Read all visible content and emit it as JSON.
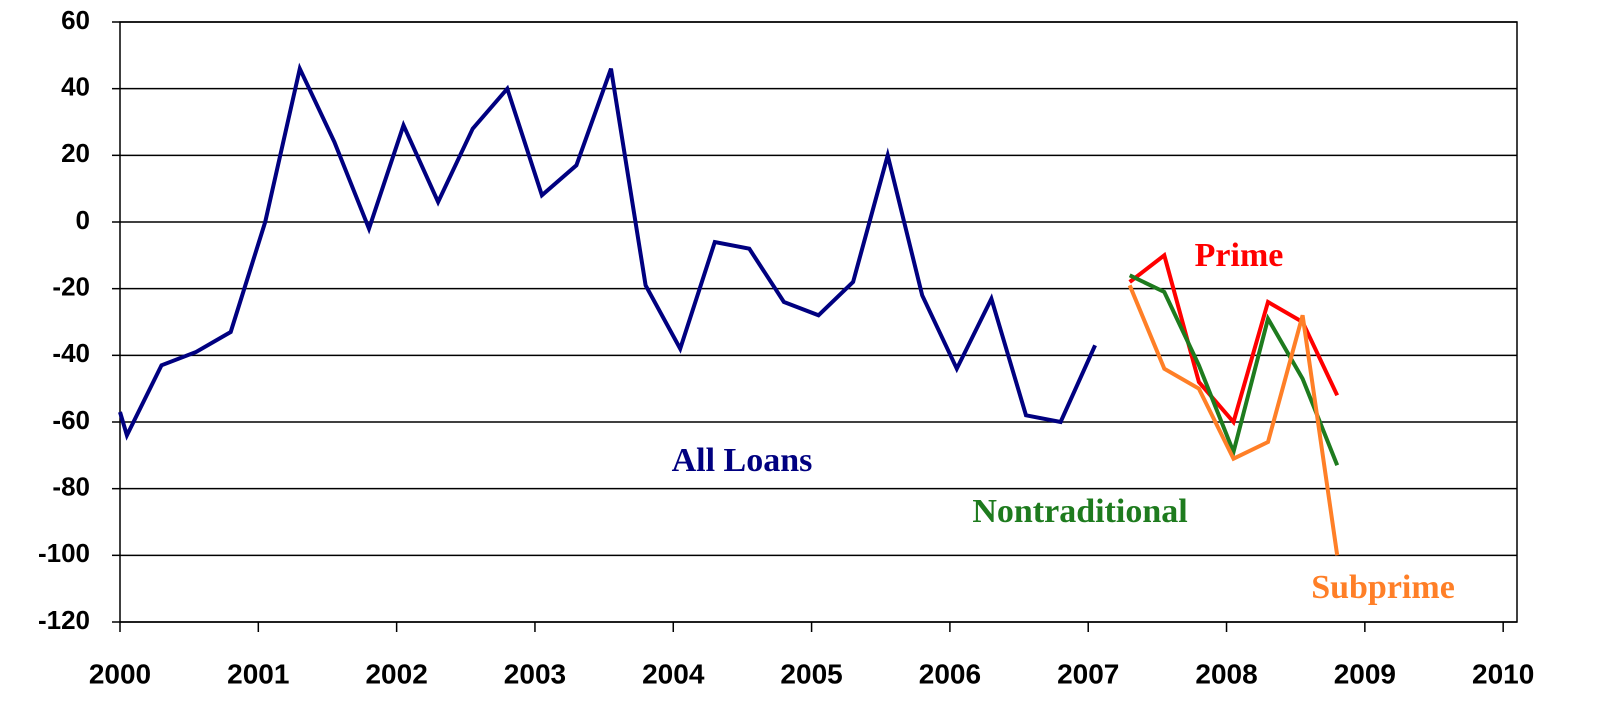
{
  "chart_data": {
    "type": "line",
    "series": [
      {
        "name": "All Loans",
        "color": "#000080",
        "x": [
          2000,
          2000.05,
          2000.3,
          2000.55,
          2000.8,
          2001.05,
          2001.3,
          2001.55,
          2001.8,
          2002.05,
          2002.3,
          2002.55,
          2002.8,
          2003.05,
          2003.3,
          2003.55,
          2003.8,
          2004.05,
          2004.3,
          2004.55,
          2004.8,
          2005.05,
          2005.3,
          2005.55,
          2005.8,
          2006.05,
          2006.3,
          2006.55,
          2006.8,
          2007.05
        ],
        "values": [
          -57,
          -64,
          -43,
          -39,
          -33,
          0,
          46,
          24,
          -2,
          29,
          6,
          28,
          40,
          8,
          17,
          46,
          -19,
          -38,
          -6,
          -8,
          -24,
          -28,
          -18,
          20,
          -22,
          -44,
          -23,
          -58,
          -60,
          -37
        ]
      },
      {
        "name": "Prime",
        "color": "#ff0000",
        "x": [
          2007.3,
          2007.55,
          2007.8,
          2008.05,
          2008.3,
          2008.55,
          2008.8
        ],
        "values": [
          -18,
          -10,
          -48,
          -60,
          -24,
          -30,
          -52
        ]
      },
      {
        "name": "Nontraditional",
        "color": "#1e7b1e",
        "x": [
          2007.3,
          2007.55,
          2007.8,
          2008.05,
          2008.3,
          2008.55,
          2008.8
        ],
        "values": [
          -16,
          -21,
          -43,
          -69,
          -29,
          -47,
          -73
        ]
      },
      {
        "name": "Subprime",
        "color": "#ff7f27",
        "x": [
          2007.3,
          2007.55,
          2007.8,
          2008.05,
          2008.3,
          2008.55,
          2008.8
        ],
        "values": [
          -19,
          -44,
          -50,
          -71,
          -66,
          -28,
          -100
        ]
      }
    ],
    "xlim": [
      2000,
      2010.1
    ],
    "xticks": [
      2000,
      2001,
      2002,
      2003,
      2004,
      2005,
      2006,
      2007,
      2008,
      2009,
      2010
    ],
    "ylim": [
      -120,
      60
    ],
    "yticks": [
      -120,
      -100,
      -80,
      -60,
      -40,
      -20,
      0,
      20,
      40,
      60
    ],
    "grid": true
  }
}
